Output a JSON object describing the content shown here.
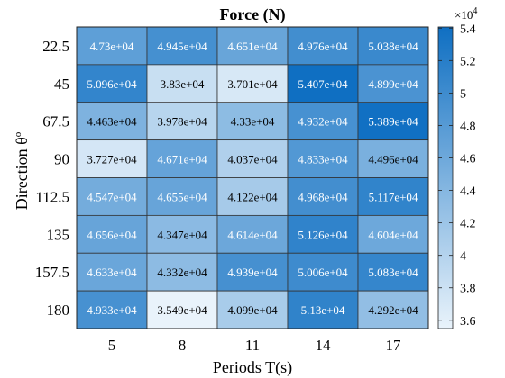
{
  "chart_data": {
    "type": "heatmap",
    "title": "Force (N)",
    "xlabel": "Periods T(s)",
    "ylabel_main": "Direction θ",
    "ylabel_sup": "o",
    "x_categories": [
      "5",
      "8",
      "11",
      "14",
      "17"
    ],
    "y_categories": [
      "22.5",
      "45",
      "67.5",
      "90",
      "112.5",
      "135",
      "157.5",
      "180"
    ],
    "values": [
      [
        47300,
        49450,
        46510,
        49760,
        50380
      ],
      [
        50960,
        38300,
        37010,
        54070,
        48990
      ],
      [
        44630,
        39780,
        43300,
        49320,
        53890
      ],
      [
        37270,
        46710,
        40370,
        48330,
        44960
      ],
      [
        45470,
        46550,
        41220,
        49680,
        51170
      ],
      [
        46560,
        43470,
        46140,
        51260,
        46040
      ],
      [
        46330,
        43320,
        49390,
        50060,
        50830
      ],
      [
        49330,
        35490,
        40990,
        51300,
        42920
      ]
    ],
    "cell_labels": [
      [
        "4.73e+04",
        "4.945e+04",
        "4.651e+04",
        "4.976e+04",
        "5.038e+04"
      ],
      [
        "5.096e+04",
        "3.83e+04",
        "3.701e+04",
        "5.407e+04",
        "4.899e+04"
      ],
      [
        "4.463e+04",
        "3.978e+04",
        "4.33e+04",
        "4.932e+04",
        "5.389e+04"
      ],
      [
        "3.727e+04",
        "4.671e+04",
        "4.037e+04",
        "4.833e+04",
        "4.496e+04"
      ],
      [
        "4.547e+04",
        "4.655e+04",
        "4.122e+04",
        "4.968e+04",
        "5.117e+04"
      ],
      [
        "4.656e+04",
        "4.347e+04",
        "4.614e+04",
        "5.126e+04",
        "4.604e+04"
      ],
      [
        "4.633e+04",
        "4.332e+04",
        "4.939e+04",
        "5.006e+04",
        "5.083e+04"
      ],
      [
        "4.933e+04",
        "3.549e+04",
        "4.099e+04",
        "5.13e+04",
        "4.292e+04"
      ]
    ],
    "colorbar": {
      "range": [
        35490,
        54070
      ],
      "ticks": [
        3.6,
        3.8,
        4,
        4.2,
        4.4,
        4.6,
        4.8,
        5,
        5.2,
        5.4
      ],
      "tick_labels": [
        "3.6",
        "3.8",
        "4",
        "4.2",
        "4.4",
        "4.6",
        "4.8",
        "5",
        "5.2",
        "5.4"
      ],
      "multiplier_base": "×10",
      "multiplier_exp": "4"
    },
    "colormap": {
      "low": "#e9f3fb",
      "high": "#0f6fc2"
    },
    "grid": false,
    "legend": "colorbar-right"
  }
}
